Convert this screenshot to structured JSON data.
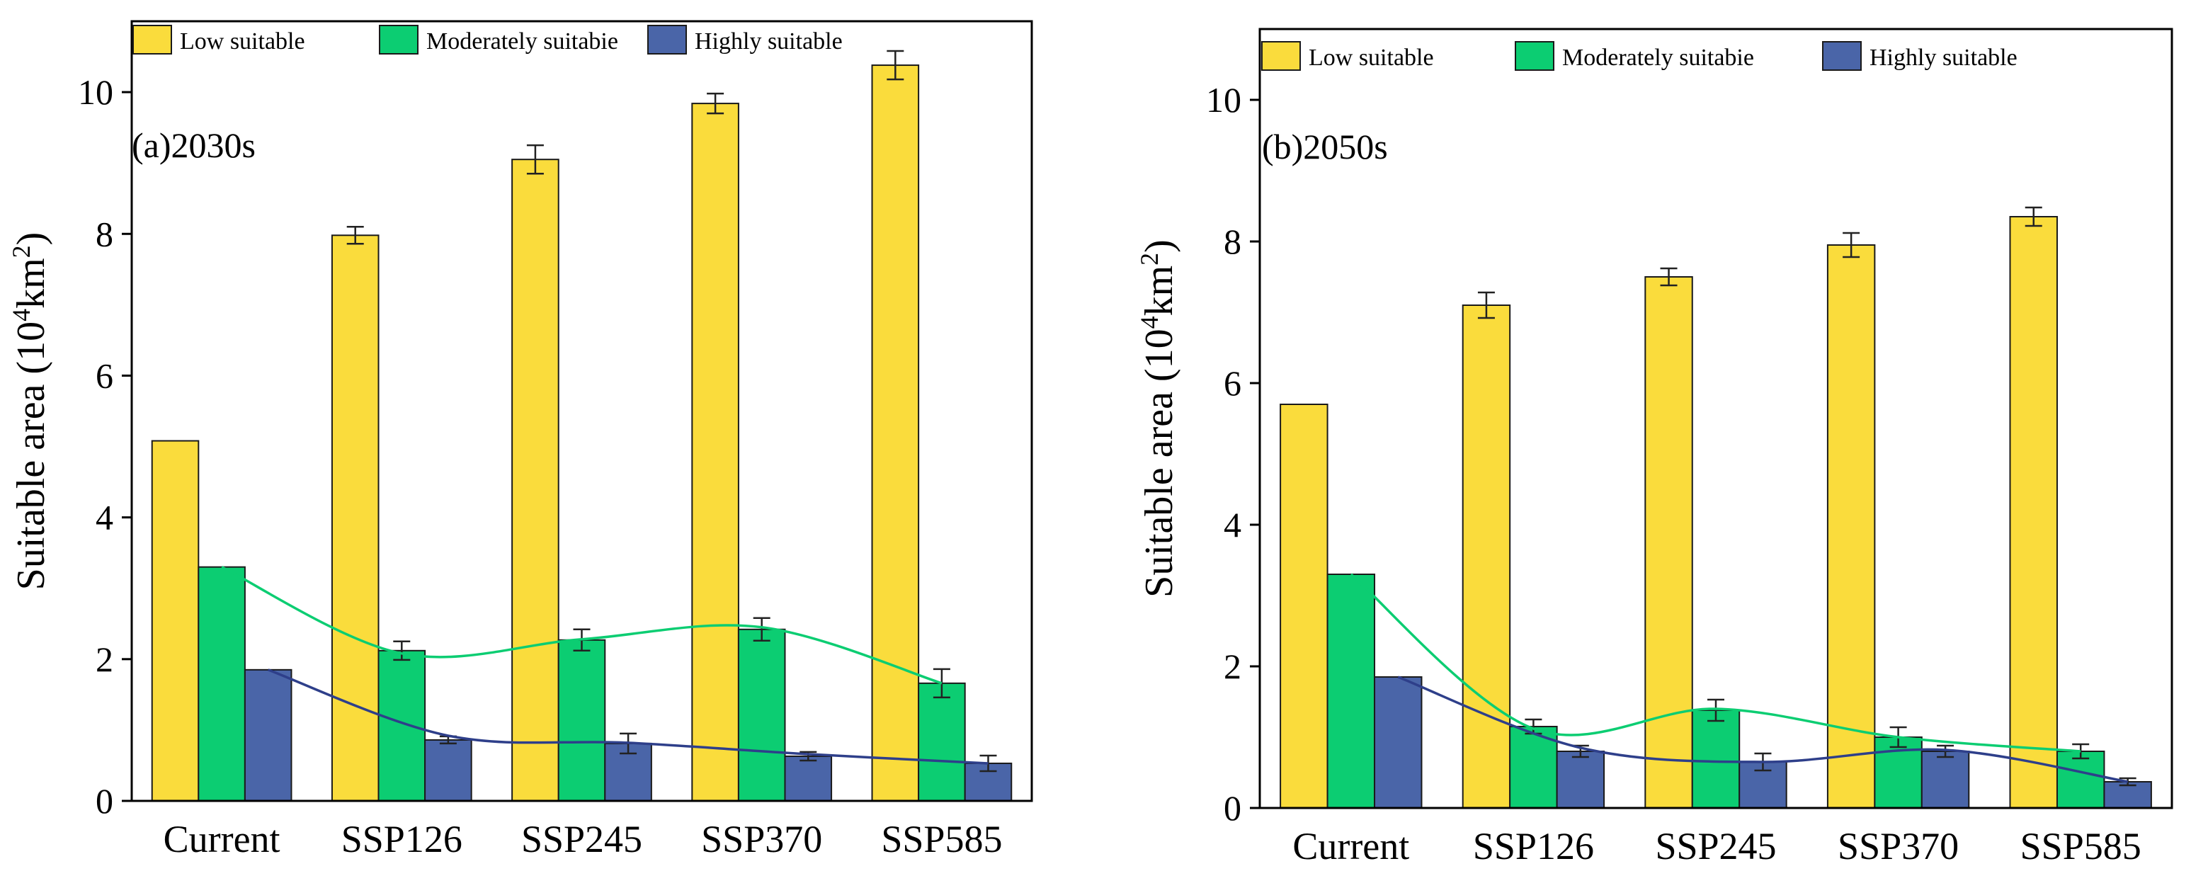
{
  "chart_data": [
    {
      "type": "bar",
      "title": "(a)2030s",
      "xlabel": "",
      "ylabel": "Suitable area (10",
      "ylabel_sup": "4",
      "ylabel_unit": "km",
      "ylabel_unit_sup": "2",
      "ylabel_close": ")",
      "ylim": [
        0,
        11
      ],
      "yticks": [
        0,
        2,
        4,
        6,
        8,
        10
      ],
      "categories": [
        "Current",
        "SSP126",
        "SSP245",
        "SSP370",
        "SSP585"
      ],
      "series": [
        {
          "name": "Low suitable",
          "color": "#fadc3c",
          "values": [
            5.08,
            7.98,
            9.05,
            9.84,
            10.38
          ],
          "errors": [
            0,
            0.12,
            0.2,
            0.14,
            0.2
          ]
        },
        {
          "name": "Moderately suitabie",
          "color": "#0ccd72",
          "values": [
            3.3,
            2.12,
            2.27,
            2.42,
            1.66
          ],
          "errors": [
            0,
            0.13,
            0.15,
            0.16,
            0.2
          ]
        },
        {
          "name": "Highly suitable",
          "color": "#4a65a8",
          "values": [
            1.85,
            0.86,
            0.81,
            0.63,
            0.53
          ],
          "errors": [
            0,
            0.05,
            0.14,
            0.06,
            0.11
          ]
        }
      ],
      "trend_lines": [
        {
          "series": "Moderately suitabie",
          "color": "#0ccd72",
          "values": [
            3.3,
            2.08,
            2.28,
            2.45,
            1.66
          ]
        },
        {
          "series": "Highly suitable",
          "color": "#2e3f8a",
          "values": [
            1.85,
            0.92,
            0.82,
            0.66,
            0.53
          ]
        }
      ],
      "legend": "top"
    },
    {
      "type": "bar",
      "title": "(b)2050s",
      "xlabel": "",
      "ylabel": "Suitable area (10",
      "ylabel_sup": "4",
      "ylabel_unit": "km",
      "ylabel_unit_sup": "2",
      "ylabel_close": ")",
      "ylim": [
        0,
        11
      ],
      "yticks": [
        0,
        2,
        4,
        6,
        8,
        10
      ],
      "categories": [
        "Current",
        "SSP126",
        "SSP245",
        "SSP370",
        "SSP585"
      ],
      "series": [
        {
          "name": "Low suitable",
          "color": "#fadc3c",
          "values": [
            5.7,
            7.1,
            7.5,
            7.95,
            8.35
          ],
          "errors": [
            0,
            0.18,
            0.12,
            0.17,
            0.13
          ]
        },
        {
          "name": "Moderately suitabie",
          "color": "#0ccd72",
          "values": [
            3.3,
            1.15,
            1.38,
            1.0,
            0.8
          ],
          "errors": [
            0,
            0.1,
            0.15,
            0.14,
            0.1
          ]
        },
        {
          "name": "Highly suitable",
          "color": "#4a65a8",
          "values": [
            1.85,
            0.8,
            0.65,
            0.8,
            0.37
          ],
          "errors": [
            0,
            0.08,
            0.12,
            0.08,
            0.05
          ]
        }
      ],
      "trend_lines": [
        {
          "series": "Moderately suitabie",
          "color": "#0ccd72",
          "values": [
            3.3,
            1.12,
            1.4,
            1.0,
            0.8
          ]
        },
        {
          "series": "Highly suitable",
          "color": "#2e3f8a",
          "values": [
            1.85,
            0.85,
            0.65,
            0.82,
            0.37
          ]
        }
      ],
      "legend": "top"
    }
  ]
}
